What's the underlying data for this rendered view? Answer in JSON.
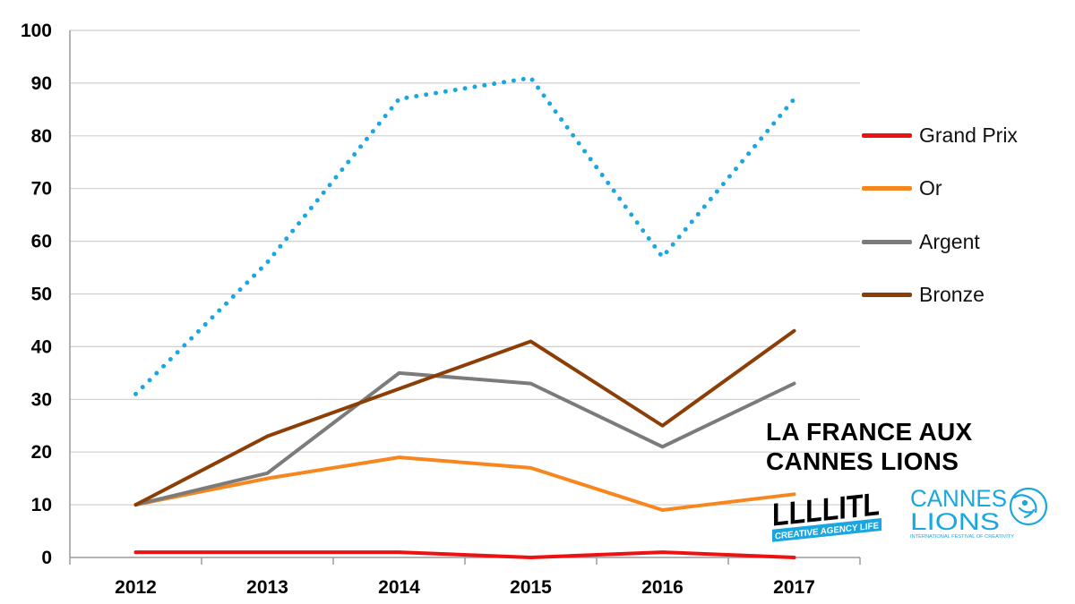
{
  "chart_data": {
    "type": "line",
    "categories": [
      "2012",
      "2013",
      "2014",
      "2015",
      "2016",
      "2017"
    ],
    "ylim": [
      0,
      100
    ],
    "yticks": [
      0,
      10,
      20,
      30,
      40,
      50,
      60,
      70,
      80,
      90,
      100
    ],
    "grid": true,
    "legend_position": "right",
    "series": [
      {
        "name": "",
        "color": "#1aa6e0",
        "style": "dotted",
        "values": [
          31,
          56,
          87,
          91,
          57,
          87
        ]
      },
      {
        "name": "Grand Prix",
        "color": "#ee1111",
        "style": "solid",
        "values": [
          1,
          1,
          1,
          0,
          1,
          0
        ]
      },
      {
        "name": "Or",
        "color": "#f7861f",
        "style": "solid",
        "values": [
          10,
          15,
          19,
          17,
          9,
          12
        ]
      },
      {
        "name": "Argent",
        "color": "#7b7b7b",
        "style": "solid",
        "values": [
          10,
          16,
          35,
          33,
          21,
          33
        ]
      },
      {
        "name": "Bronze",
        "color": "#8b3e06",
        "style": "solid",
        "values": [
          10,
          23,
          32,
          41,
          25,
          43
        ]
      }
    ]
  },
  "annotation": {
    "line1": "LA FRANCE AUX",
    "line2": "CANNES LIONS"
  },
  "logos": {
    "lllitl": {
      "text": "LLLLITL",
      "subtext": "CREATIVE AGENCY LIFE"
    },
    "cannes": {
      "line1": "CANNES",
      "line2": "LIONS",
      "subtext": "INTERNATIONAL FESTIVAL OF CREATIVITY",
      "color": "#1aa6e0"
    }
  }
}
